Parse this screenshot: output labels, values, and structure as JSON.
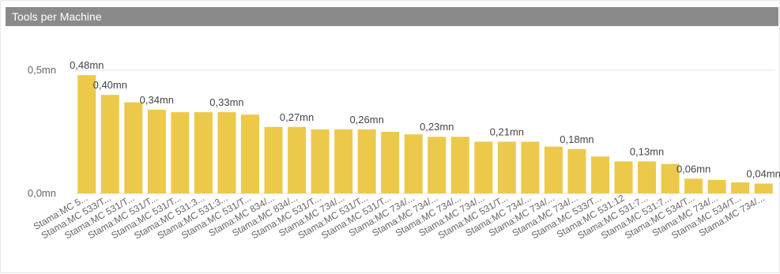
{
  "card": {
    "title": "Tools per Machine"
  },
  "colors": {
    "bar": "#ecc94b",
    "gridline": "#e5e5e5",
    "title_bar": "#8a8a8a"
  },
  "chart_data": {
    "type": "bar",
    "title": "Tools per Machine",
    "xlabel": "",
    "ylabel": "",
    "ylim": [
      0,
      0.5
    ],
    "y_ticks": [
      {
        "value": 0.5,
        "label": "0,5mn"
      },
      {
        "value": 0.0,
        "label": "0,0mn"
      }
    ],
    "grid": true,
    "legend": "none",
    "unit": "mn",
    "categories": [
      "Stama:MC 5...",
      "Stama:MC 533/T...",
      "Stama:MC 531/T...",
      "Stama:MC 531/T...",
      "Stama:MC 531/T...",
      "Stama:MC 531:3...",
      "Stama:MC 531:3...",
      "Stama:MC 531/T...",
      "Stama:MC 834/...",
      "Stama:MC 834/...",
      "Stama:MC 531/T...",
      "Stama:MC 734/...",
      "Stama:MC 531/T...",
      "Stama:MC 531/T...",
      "Stama:MC 734/...",
      "Stama:MC 734/...",
      "Stama:MC 734/...",
      "Stama:MC 734/...",
      "Stama:MC 531/T...",
      "Stama:MC 734/...",
      "Stama:MC 734/...",
      "Stama:MC 734/...",
      "Stama:MC 533/T...",
      "Stama:MC 531:12",
      "Stama:MC 531:7...",
      "Stama:MC 531:7...",
      "Stama:MC 534/T...",
      "Stama:MC 734/...",
      "Stama:MC 534/T...",
      "Stama:MC 734/..."
    ],
    "values": [
      0.48,
      0.4,
      0.37,
      0.34,
      0.33,
      0.33,
      0.33,
      0.32,
      0.27,
      0.27,
      0.26,
      0.26,
      0.26,
      0.25,
      0.24,
      0.23,
      0.23,
      0.21,
      0.21,
      0.21,
      0.19,
      0.18,
      0.15,
      0.13,
      0.13,
      0.12,
      0.06,
      0.055,
      0.045,
      0.04
    ],
    "data_labels": [
      {
        "index": 0,
        "label": "0,48mn"
      },
      {
        "index": 1,
        "label": "0,40mn"
      },
      {
        "index": 3,
        "label": "0,34mn"
      },
      {
        "index": 6,
        "label": "0,33mn"
      },
      {
        "index": 9,
        "label": "0,27mn"
      },
      {
        "index": 12,
        "label": "0,26mn"
      },
      {
        "index": 15,
        "label": "0,23mn"
      },
      {
        "index": 18,
        "label": "0,21mn"
      },
      {
        "index": 21,
        "label": "0,18mn"
      },
      {
        "index": 24,
        "label": "0,13mn"
      },
      {
        "index": 26,
        "label": "0,06mn"
      },
      {
        "index": 29,
        "label": "0,04mn"
      }
    ]
  }
}
